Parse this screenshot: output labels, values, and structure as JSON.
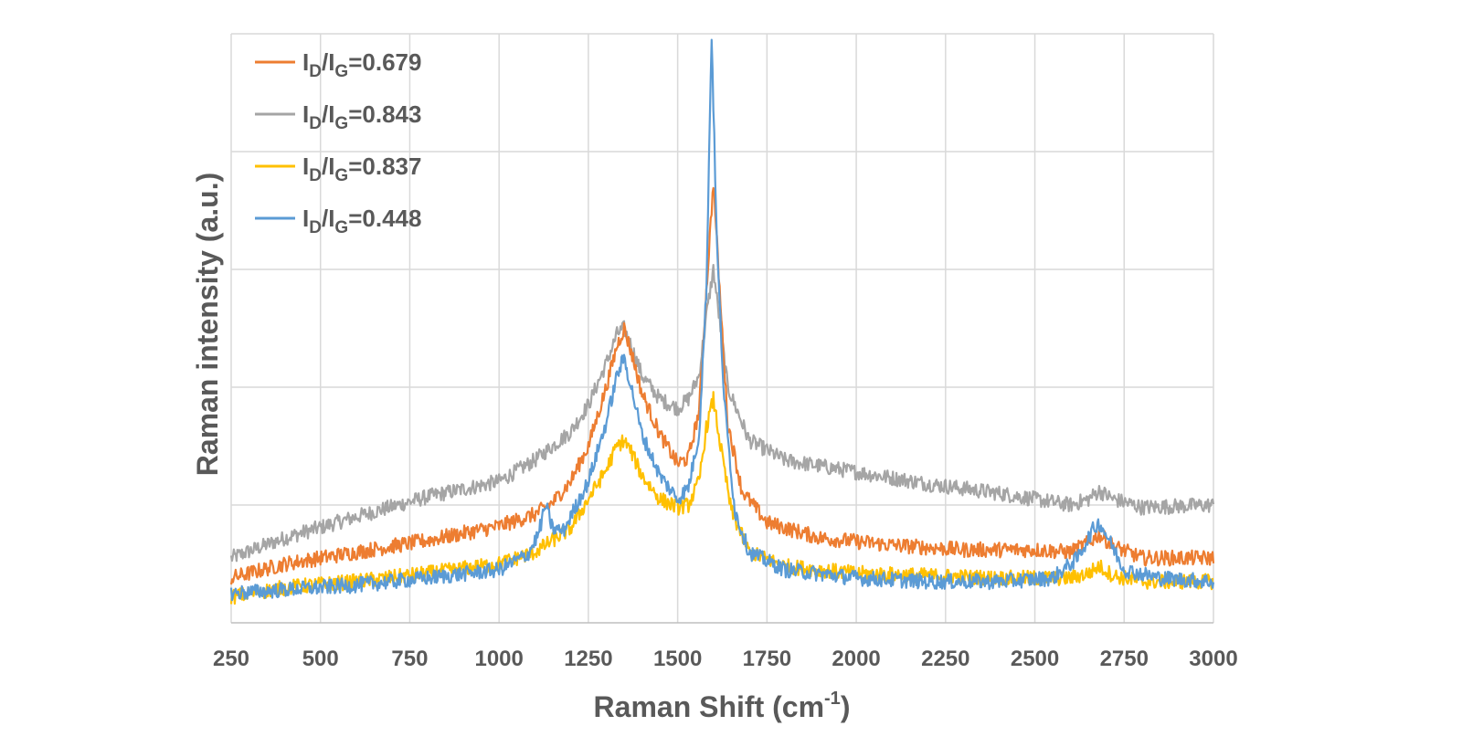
{
  "chart_data": {
    "type": "line",
    "title": "",
    "xlabel": "Raman Shift (cm",
    "xlabel_sup": "-1",
    "xlabel_end": ")",
    "ylabel": "Raman intensity (a.u.)",
    "xlim": [
      250,
      3000
    ],
    "ylim": [
      0,
      5
    ],
    "x_ticks": [
      250,
      500,
      750,
      1000,
      1250,
      1500,
      1750,
      2000,
      2250,
      2500,
      2750,
      3000
    ],
    "x_tick_labels": [
      "250",
      "500",
      "750",
      "1000",
      "1250",
      "1500",
      "1750",
      "2000",
      "2250",
      "2500",
      "2750",
      "3000"
    ],
    "y_gridlines": [
      1,
      2,
      3,
      4,
      5
    ],
    "y_tick_labels_shown": false,
    "grid": true,
    "legend_position": "top-left",
    "series": [
      {
        "name_main": "I",
        "name_sub1": "D",
        "name_mid": "/I",
        "name_sub2": "G",
        "name_value": "=0.679",
        "color": "#ED7D31",
        "x": [
          250,
          400,
          600,
          800,
          1000,
          1100,
          1150,
          1200,
          1250,
          1300,
          1330,
          1350,
          1370,
          1400,
          1450,
          1500,
          1530,
          1560,
          1580,
          1600,
          1620,
          1640,
          1680,
          1750,
          1900,
          2100,
          2300,
          2500,
          2600,
          2650,
          2680,
          2720,
          2800,
          3000
        ],
        "y": [
          0.38,
          0.5,
          0.6,
          0.7,
          0.82,
          0.92,
          1.02,
          1.2,
          1.5,
          2.0,
          2.35,
          2.5,
          2.3,
          1.95,
          1.6,
          1.35,
          1.4,
          1.8,
          2.8,
          3.75,
          2.7,
          1.7,
          1.12,
          0.85,
          0.72,
          0.66,
          0.62,
          0.62,
          0.6,
          0.68,
          0.75,
          0.65,
          0.55,
          0.55
        ]
      },
      {
        "name_main": "I",
        "name_sub1": "D",
        "name_mid": "/I",
        "name_sub2": "G",
        "name_value": "=0.843",
        "color": "#A5A5A5",
        "x": [
          250,
          400,
          600,
          800,
          1000,
          1100,
          1200,
          1250,
          1300,
          1330,
          1350,
          1370,
          1400,
          1450,
          1500,
          1530,
          1560,
          1580,
          1600,
          1620,
          1640,
          1700,
          1800,
          2000,
          2200,
          2400,
          2600,
          2650,
          2680,
          2720,
          2800,
          3000
        ],
        "y": [
          0.55,
          0.72,
          0.9,
          1.07,
          1.2,
          1.38,
          1.62,
          1.85,
          2.2,
          2.45,
          2.5,
          2.35,
          2.1,
          1.9,
          1.82,
          1.9,
          2.1,
          2.6,
          3.0,
          2.5,
          2.0,
          1.55,
          1.38,
          1.28,
          1.18,
          1.1,
          1.0,
          1.05,
          1.12,
          1.05,
          0.98,
          1.0
        ]
      },
      {
        "name_main": "I",
        "name_sub1": "D",
        "name_mid": "/I",
        "name_sub2": "G",
        "name_value": "=0.837",
        "color": "#FFC000",
        "x": [
          250,
          400,
          600,
          800,
          1000,
          1100,
          1150,
          1200,
          1250,
          1300,
          1330,
          1350,
          1370,
          1400,
          1450,
          1500,
          1530,
          1560,
          1580,
          1600,
          1620,
          1650,
          1700,
          1800,
          2000,
          2200,
          2400,
          2600,
          2650,
          2680,
          2720,
          2800,
          3000
        ],
        "y": [
          0.22,
          0.3,
          0.35,
          0.42,
          0.5,
          0.6,
          0.7,
          0.8,
          1.05,
          1.3,
          1.5,
          1.55,
          1.45,
          1.25,
          1.05,
          0.98,
          1.0,
          1.2,
          1.65,
          1.9,
          1.5,
          0.95,
          0.6,
          0.48,
          0.42,
          0.4,
          0.38,
          0.38,
          0.42,
          0.48,
          0.4,
          0.35,
          0.35
        ]
      },
      {
        "name_main": "I",
        "name_sub1": "D",
        "name_mid": "/I",
        "name_sub2": "G",
        "name_value": "=0.448",
        "color": "#5B9BD5",
        "x": [
          250,
          400,
          600,
          800,
          1000,
          1080,
          1110,
          1130,
          1150,
          1180,
          1250,
          1300,
          1330,
          1350,
          1370,
          1400,
          1450,
          1500,
          1530,
          1560,
          1580,
          1595,
          1610,
          1630,
          1660,
          1700,
          1800,
          2000,
          2200,
          2400,
          2550,
          2620,
          2660,
          2680,
          2700,
          2750,
          2850,
          3000
        ],
        "y": [
          0.25,
          0.28,
          0.32,
          0.38,
          0.45,
          0.58,
          0.75,
          1.0,
          0.8,
          0.78,
          1.2,
          1.7,
          2.1,
          2.25,
          2.0,
          1.6,
          1.25,
          1.05,
          1.15,
          1.6,
          2.8,
          5.0,
          3.2,
          1.9,
          0.95,
          0.6,
          0.45,
          0.38,
          0.35,
          0.35,
          0.38,
          0.55,
          0.78,
          0.85,
          0.75,
          0.45,
          0.38,
          0.35
        ]
      }
    ]
  }
}
